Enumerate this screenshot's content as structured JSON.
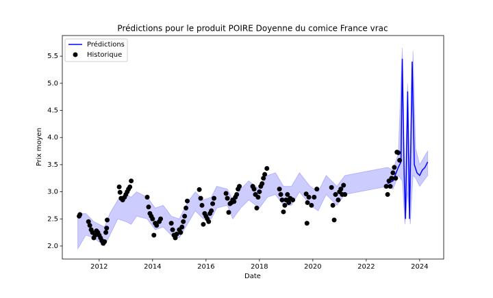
{
  "chart_data": {
    "type": "line",
    "title": "Prédictions pour le produit POIRE Doyenne du comice France vrac",
    "xlabel": "Date",
    "ylabel": "Prix moyen",
    "xlim": [
      2010.62,
      2024.9
    ],
    "ylim": [
      1.76,
      5.88
    ],
    "xticks": [
      2012,
      2014,
      2016,
      2018,
      2020,
      2022,
      2024
    ],
    "yticks": [
      {
        "value": 2.0,
        "label": "2.0"
      },
      2.5,
      {
        "value": 3.0,
        "label": "3.0"
      },
      3.5,
      {
        "value": 4.0,
        "label": "4.0"
      },
      4.5,
      {
        "value": 5.0,
        "label": "5.0"
      },
      5.5
    ],
    "legend": "upper left",
    "interval": {
      "color": "#0000ff",
      "x": [
        2011.2,
        2011.5,
        2011.8,
        2012.2,
        2012.4,
        2012.7,
        2013.0,
        2013.2,
        2013.4,
        2013.8,
        2014.1,
        2014.4,
        2014.7,
        2015.0,
        2015.3,
        2015.6,
        2015.9,
        2016.2,
        2016.4,
        2016.8,
        2017.0,
        2017.3,
        2017.6,
        2018.0,
        2018.3,
        2018.6,
        2018.9,
        2019.2,
        2019.5,
        2019.9,
        2020.2,
        2020.5,
        2020.9,
        2021.2,
        2022.8,
        2023.0,
        2023.2,
        2023.35,
        2023.45,
        2023.55,
        2023.65,
        2023.75,
        2023.85,
        2024.0,
        2024.3
      ],
      "lower": [
        1.95,
        2.2,
        2.15,
        2.0,
        2.2,
        2.5,
        2.45,
        2.4,
        2.55,
        2.5,
        2.3,
        2.35,
        2.2,
        2.15,
        2.4,
        2.65,
        2.5,
        2.5,
        2.7,
        2.75,
        2.5,
        2.7,
        2.85,
        2.7,
        2.9,
        2.95,
        2.75,
        2.75,
        3.0,
        2.75,
        2.65,
        2.95,
        2.75,
        2.95,
        3.1,
        3.05,
        3.3,
        3.2,
        2.4,
        3.0,
        2.4,
        3.3,
        3.25,
        3.1,
        3.3
      ],
      "upper": [
        2.6,
        2.6,
        2.45,
        2.35,
        2.6,
        2.85,
        2.95,
        2.9,
        3.0,
        2.9,
        2.7,
        2.75,
        2.55,
        2.5,
        2.8,
        3.0,
        2.85,
        2.9,
        3.1,
        3.05,
        2.85,
        3.05,
        3.2,
        3.05,
        3.3,
        3.35,
        3.1,
        3.1,
        3.35,
        3.1,
        3.0,
        3.3,
        3.1,
        3.3,
        3.45,
        3.4,
        3.7,
        5.65,
        3.0,
        5.0,
        3.0,
        5.6,
        3.8,
        3.5,
        3.75
      ]
    },
    "series": [
      {
        "name": "Prédictions",
        "type": "line",
        "color": "#0000ff",
        "x": [
          2022.8,
          2023.0,
          2023.2,
          2023.3,
          2023.35,
          2023.42,
          2023.47,
          2023.55,
          2023.62,
          2023.72,
          2023.8,
          2023.9,
          2024.0,
          2024.1,
          2024.2,
          2024.3
        ],
        "values": [
          3.15,
          3.2,
          3.45,
          3.55,
          5.45,
          3.3,
          2.5,
          4.85,
          2.5,
          5.4,
          3.5,
          3.35,
          3.3,
          3.4,
          3.45,
          3.55
        ]
      },
      {
        "name": "Historique",
        "type": "scatter",
        "color": "#000000",
        "x": [
          2011.25,
          2011.28,
          2011.6,
          2011.65,
          2011.7,
          2011.75,
          2011.8,
          2011.85,
          2011.9,
          2011.95,
          2012.0,
          2012.05,
          2012.1,
          2012.15,
          2012.2,
          2012.25,
          2012.28,
          2012.3,
          2012.75,
          2012.78,
          2012.82,
          2012.88,
          2012.95,
          2013.0,
          2013.05,
          2013.1,
          2013.15,
          2013.2,
          2013.8,
          2013.85,
          2013.9,
          2013.95,
          2014.0,
          2014.05,
          2014.1,
          2014.15,
          2014.25,
          2014.3,
          2014.7,
          2014.75,
          2014.8,
          2014.85,
          2014.9,
          2015.0,
          2015.05,
          2015.1,
          2015.15,
          2015.2,
          2015.25,
          2015.3,
          2015.75,
          2015.8,
          2015.85,
          2015.9,
          2015.95,
          2016.0,
          2016.05,
          2016.1,
          2016.15,
          2016.2,
          2016.25,
          2016.3,
          2016.75,
          2016.8,
          2016.85,
          2016.9,
          2016.95,
          2017.0,
          2017.05,
          2017.1,
          2017.15,
          2017.2,
          2017.25,
          2017.75,
          2017.8,
          2017.85,
          2017.9,
          2017.95,
          2018.0,
          2018.05,
          2018.1,
          2018.15,
          2018.2,
          2018.28,
          2018.75,
          2018.8,
          2018.85,
          2018.9,
          2018.95,
          2019.0,
          2019.05,
          2019.1,
          2019.15,
          2019.25,
          2019.75,
          2019.78,
          2019.8,
          2019.85,
          2019.95,
          2020.05,
          2020.15,
          2020.7,
          2020.75,
          2020.8,
          2020.85,
          2020.95,
          2021.0,
          2021.05,
          2021.1,
          2021.15,
          2021.2,
          2022.75,
          2022.8,
          2022.85,
          2022.9,
          2022.95,
          2023.0,
          2023.05,
          2023.1,
          2023.15,
          2023.2,
          2023.25
        ],
        "values": [
          2.55,
          2.58,
          2.45,
          2.38,
          2.3,
          2.25,
          2.15,
          2.2,
          2.28,
          2.25,
          2.2,
          2.15,
          2.1,
          2.05,
          2.08,
          2.25,
          2.33,
          2.48,
          3.09,
          2.99,
          2.88,
          2.85,
          2.9,
          2.95,
          3.0,
          3.05,
          3.09,
          3.2,
          2.9,
          2.72,
          2.6,
          2.55,
          2.5,
          2.2,
          2.42,
          2.38,
          2.45,
          2.5,
          2.42,
          2.3,
          2.2,
          2.15,
          2.22,
          2.3,
          2.25,
          2.35,
          2.45,
          2.55,
          2.7,
          2.83,
          3.04,
          2.88,
          2.75,
          2.4,
          2.6,
          2.55,
          2.5,
          2.45,
          2.6,
          2.65,
          2.78,
          2.88,
          2.97,
          2.88,
          2.62,
          2.78,
          2.8,
          2.85,
          2.82,
          2.9,
          2.95,
          3.05,
          3.1,
          3.1,
          3.05,
          2.95,
          2.7,
          2.9,
          3.0,
          3.1,
          3.15,
          3.25,
          3.32,
          3.43,
          3.05,
          2.95,
          2.85,
          2.63,
          2.75,
          2.85,
          2.95,
          2.8,
          2.88,
          2.85,
          2.96,
          2.42,
          2.8,
          2.9,
          2.75,
          2.9,
          3.05,
          3.08,
          2.75,
          2.48,
          2.95,
          2.85,
          3.0,
          3.05,
          2.95,
          3.12,
          2.95,
          3.1,
          2.95,
          3.2,
          3.1,
          3.25,
          3.35,
          3.45,
          3.25,
          3.73,
          3.72,
          3.58
        ]
      }
    ]
  }
}
